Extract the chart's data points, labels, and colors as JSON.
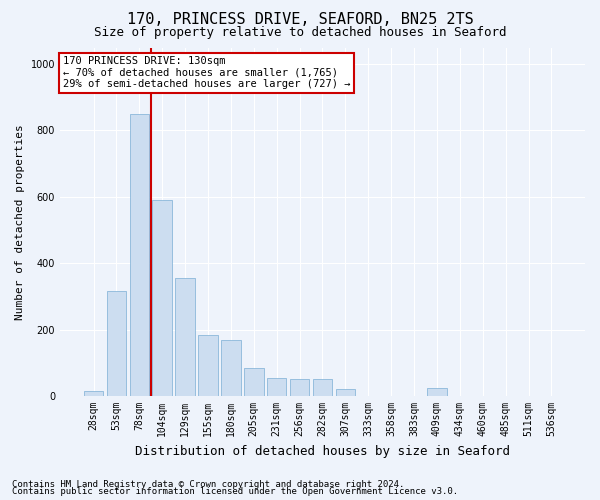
{
  "title1": "170, PRINCESS DRIVE, SEAFORD, BN25 2TS",
  "title2": "Size of property relative to detached houses in Seaford",
  "xlabel": "Distribution of detached houses by size in Seaford",
  "ylabel": "Number of detached properties",
  "categories": [
    "28sqm",
    "53sqm",
    "78sqm",
    "104sqm",
    "129sqm",
    "155sqm",
    "180sqm",
    "205sqm",
    "231sqm",
    "256sqm",
    "282sqm",
    "307sqm",
    "333sqm",
    "358sqm",
    "383sqm",
    "409sqm",
    "434sqm",
    "460sqm",
    "485sqm",
    "511sqm",
    "536sqm"
  ],
  "values": [
    15,
    315,
    850,
    590,
    355,
    185,
    170,
    85,
    55,
    50,
    50,
    20,
    0,
    0,
    0,
    25,
    0,
    0,
    0,
    0,
    0
  ],
  "bar_color": "#ccddf0",
  "bar_edge_color": "#7baed4",
  "vline_color": "#cc0000",
  "vline_pos": 2.5,
  "annotation_text": "170 PRINCESS DRIVE: 130sqm\n← 70% of detached houses are smaller (1,765)\n29% of semi-detached houses are larger (727) →",
  "annotation_box_facecolor": "#ffffff",
  "annotation_box_edgecolor": "#cc0000",
  "ylim": [
    0,
    1050
  ],
  "yticks": [
    0,
    200,
    400,
    600,
    800,
    1000
  ],
  "bg_color": "#eef3fb",
  "plot_bg_color": "#eef3fb",
  "grid_color": "#ffffff",
  "title1_fontsize": 11,
  "title2_fontsize": 9,
  "xlabel_fontsize": 9,
  "ylabel_fontsize": 8,
  "tick_fontsize": 7,
  "ann_fontsize": 7.5,
  "footer1": "Contains HM Land Registry data © Crown copyright and database right 2024.",
  "footer2": "Contains public sector information licensed under the Open Government Licence v3.0.",
  "footer_fontsize": 6.5
}
